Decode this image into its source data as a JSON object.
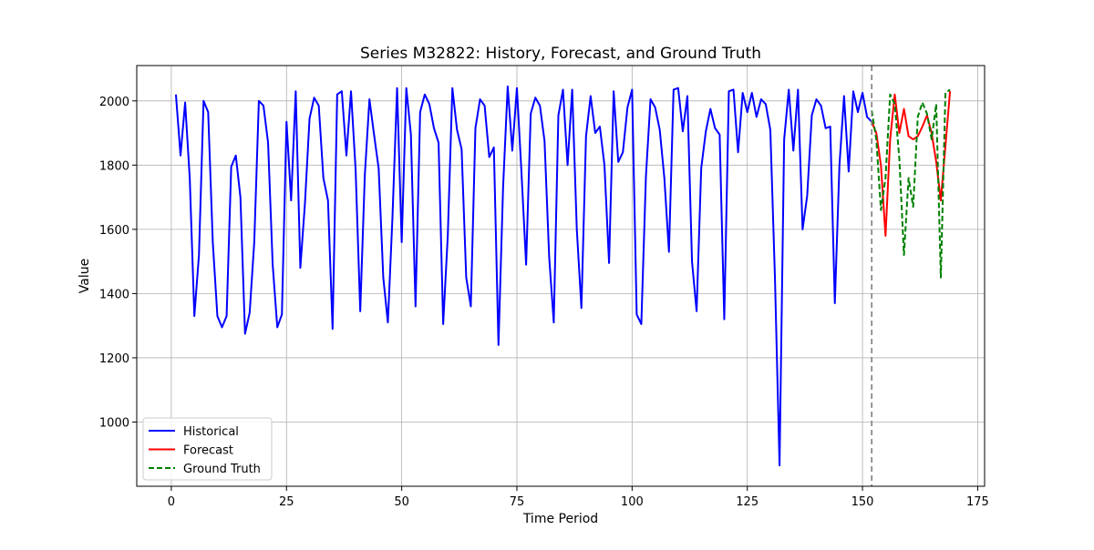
{
  "chart_data": {
    "type": "line",
    "title": "Series M32822: History, Forecast, and Ground Truth",
    "xlabel": "Time Period",
    "ylabel": "Value",
    "xlim": [
      -7.5,
      176.5
    ],
    "ylim": [
      800,
      2110
    ],
    "xticks": [
      0,
      25,
      50,
      75,
      100,
      125,
      150,
      175
    ],
    "yticks": [
      1000,
      1200,
      1400,
      1600,
      1800,
      2000
    ],
    "grid": true,
    "legend_position": "lower-left",
    "forecast_start": 152,
    "series": [
      {
        "name": "Historical",
        "color": "#0000ff",
        "style": "solid",
        "x_start": 1,
        "values": [
          2020,
          1830,
          1995,
          1760,
          1330,
          1520,
          2000,
          1965,
          1560,
          1330,
          1295,
          1330,
          1795,
          1830,
          1700,
          1275,
          1340,
          1560,
          2000,
          1985,
          1870,
          1490,
          1295,
          1335,
          1935,
          1690,
          2030,
          1480,
          1680,
          1945,
          2010,
          1985,
          1760,
          1690,
          1290,
          2020,
          2030,
          1830,
          2030,
          1785,
          1345,
          1770,
          2005,
          1895,
          1790,
          1450,
          1310,
          1640,
          2040,
          1560,
          2040,
          1895,
          1360,
          1965,
          2020,
          1990,
          1915,
          1870,
          1305,
          1580,
          2040,
          1910,
          1850,
          1450,
          1360,
          1915,
          2005,
          1985,
          1825,
          1855,
          1240,
          1730,
          2045,
          1845,
          2040,
          1775,
          1490,
          1960,
          2010,
          1985,
          1875,
          1515,
          1310,
          1955,
          2035,
          1800,
          2035,
          1600,
          1355,
          1890,
          2015,
          1900,
          1920,
          1800,
          1495,
          2030,
          1810,
          1840,
          1980,
          2035,
          1335,
          1305,
          1765,
          2005,
          1980,
          1910,
          1760,
          1530,
          2035,
          2040,
          1905,
          2015,
          1500,
          1345,
          1790,
          1905,
          1975,
          1915,
          1895,
          1320,
          2030,
          2035,
          1840,
          2025,
          1965,
          2025,
          1950,
          2005,
          1990,
          1910,
          1450,
          865,
          1880,
          2035,
          1845,
          2035,
          1600,
          1705,
          1955,
          2005,
          1985,
          1915,
          1920,
          1370,
          1800,
          2015,
          1780,
          2030,
          1965,
          2025,
          1950,
          1935
        ]
      },
      {
        "name": "Forecast",
        "color": "#ff0000",
        "style": "solid",
        "x_start": 152,
        "values": [
          1935,
          1900,
          1800,
          1580,
          1880,
          2020,
          1900,
          1975,
          1890,
          1880,
          1890,
          1920,
          1955,
          1900,
          1810,
          1690,
          1860,
          2030
        ]
      },
      {
        "name": "Ground Truth",
        "color": "#008000",
        "style": "dashed",
        "x_start": 152,
        "values": [
          1970,
          1880,
          1660,
          1760,
          2020,
          1990,
          1820,
          1520,
          1760,
          1670,
          1950,
          1995,
          1960,
          1880,
          1990,
          1450,
          2025,
          2035
        ]
      }
    ]
  }
}
